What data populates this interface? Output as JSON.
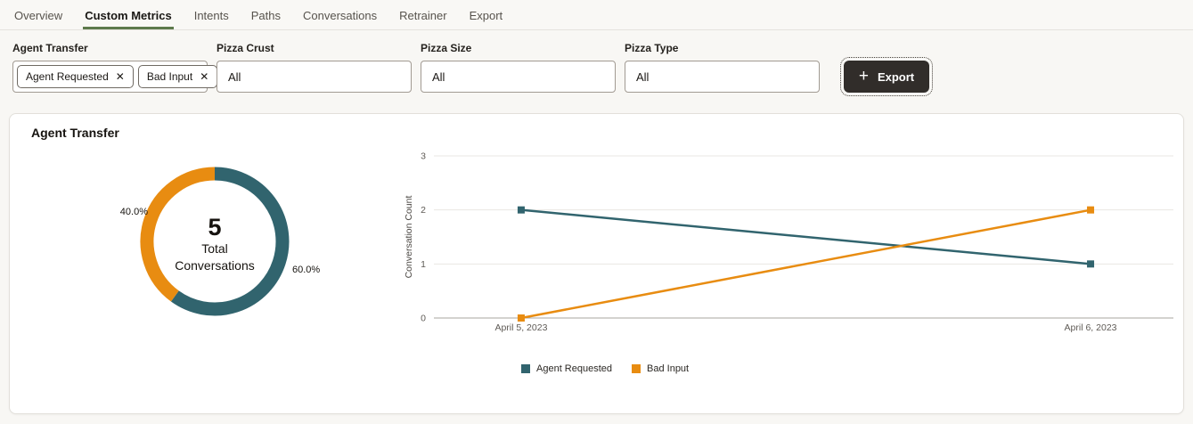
{
  "tabs": {
    "items": [
      {
        "label": "Overview",
        "active": false
      },
      {
        "label": "Custom Metrics",
        "active": true
      },
      {
        "label": "Intents",
        "active": false
      },
      {
        "label": "Paths",
        "active": false
      },
      {
        "label": "Conversations",
        "active": false
      },
      {
        "label": "Retrainer",
        "active": false
      },
      {
        "label": "Export",
        "active": false
      }
    ]
  },
  "filters": {
    "agent_transfer": {
      "label": "Agent Transfer",
      "chips": [
        {
          "label": "Agent Requested",
          "remove_icon": "✕"
        },
        {
          "label": "Bad Input",
          "remove_icon": "✕"
        }
      ]
    },
    "pizza_crust": {
      "label": "Pizza Crust",
      "value": "All"
    },
    "pizza_size": {
      "label": "Pizza Size",
      "value": "All"
    },
    "pizza_type": {
      "label": "Pizza Type",
      "value": "All"
    }
  },
  "toolbar": {
    "plus_icon": "+",
    "export_label": "Export"
  },
  "card": {
    "title": "Agent Transfer"
  },
  "colors": {
    "teal": "#31646e",
    "orange": "#e88c11",
    "tab_underline": "#5d7a4c",
    "export_button_bg": "#312d2a"
  },
  "chart_data": [
    {
      "type": "pie",
      "title": "Agent Transfer",
      "slices": [
        {
          "label": "Agent Requested",
          "pct": 60.0,
          "display": "60.0%",
          "color": "#31646e"
        },
        {
          "label": "Bad Input",
          "pct": 40.0,
          "display": "40.0%",
          "color": "#e88c11"
        }
      ],
      "center": {
        "value": "5",
        "label_line1": "Total",
        "label_line2": "Conversations"
      },
      "legend_position": "none"
    },
    {
      "type": "line",
      "categories": [
        "April 5, 2023",
        "April 6, 2023"
      ],
      "series": [
        {
          "name": "Agent Requested",
          "values": [
            2,
            1
          ],
          "color": "#31646e"
        },
        {
          "name": "Bad Input",
          "values": [
            0,
            2
          ],
          "color": "#e88c11"
        }
      ],
      "ylabel": "Conversation Count",
      "ylim": [
        0,
        3
      ],
      "yticks": [
        0,
        1,
        2,
        3
      ],
      "grid": true,
      "legend_position": "bottom"
    }
  ]
}
